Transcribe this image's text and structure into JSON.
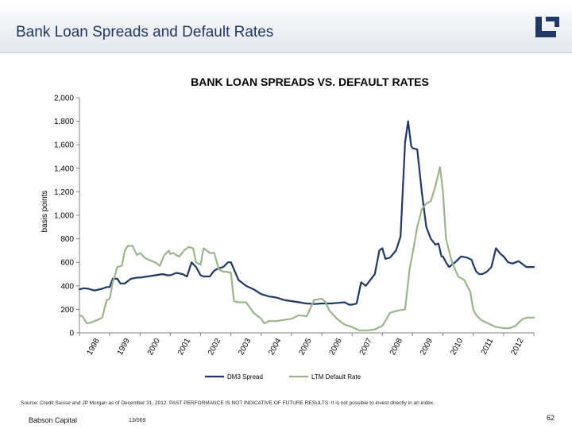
{
  "header": {
    "title": "Bank Loan Spreads and Default Rates",
    "logo_icon": "babson-bracket-logo-icon"
  },
  "colors": {
    "dm3": "#1f3864",
    "ltm": "#9bb58b",
    "axis": "#808080",
    "title": "#1f3864"
  },
  "chart_data": {
    "type": "line",
    "title": "BANK LOAN SPREADS VS. DEFAULT RATES",
    "ylabel": "basis points",
    "xlabel": "",
    "ylim": [
      0,
      2000
    ],
    "yticks": [
      0,
      200,
      400,
      600,
      800,
      1000,
      1200,
      1400,
      1600,
      1800,
      2000
    ],
    "ytick_labels": [
      "0",
      "200",
      "400",
      "600",
      "800",
      "1,000",
      "1,200",
      "1,400",
      "1,600",
      "1,800",
      "2,000"
    ],
    "xlim": [
      1998.0,
      2013.0
    ],
    "xtick_labels": [
      "1998",
      "1999",
      "2000",
      "2001",
      "2002",
      "2003",
      "2004",
      "2005",
      "2006",
      "2007",
      "2008",
      "2009",
      "2010",
      "2011",
      "2012"
    ],
    "grid": false,
    "legend_position": "bottom",
    "series": [
      {
        "name": "DM3 Spread",
        "color_key": "dm3",
        "x": [
          1998.0,
          1998.15,
          1998.3,
          1998.5,
          1998.75,
          1998.9,
          1999.0,
          1999.1,
          1999.25,
          1999.35,
          1999.5,
          1999.7,
          1999.9,
          2000.0,
          2000.25,
          2000.5,
          2000.75,
          2000.9,
          2001.0,
          2001.2,
          2001.4,
          2001.55,
          2001.7,
          2001.85,
          2002.0,
          2002.1,
          2002.3,
          2002.45,
          2002.6,
          2002.75,
          2002.9,
          2003.0,
          2003.25,
          2003.5,
          2003.75,
          2004.0,
          2004.25,
          2004.5,
          2004.75,
          2005.0,
          2005.25,
          2005.5,
          2005.75,
          2006.0,
          2006.3,
          2006.5,
          2006.75,
          2006.9,
          2007.0,
          2007.15,
          2007.3,
          2007.45,
          2007.6,
          2007.75,
          2007.9,
          2008.0,
          2008.1,
          2008.25,
          2008.45,
          2008.6,
          2008.75,
          2008.85,
          2008.95,
          2009.0,
          2009.15,
          2009.3,
          2009.45,
          2009.6,
          2009.75,
          2009.85,
          2009.95,
          2010.0,
          2010.1,
          2010.2,
          2010.4,
          2010.6,
          2010.8,
          2010.95,
          2011.0,
          2011.1,
          2011.2,
          2011.3,
          2011.45,
          2011.6,
          2011.75,
          2011.9,
          2012.0,
          2012.15,
          2012.3,
          2012.5,
          2012.75,
          2013.0
        ],
        "y": [
          370,
          380,
          375,
          360,
          375,
          390,
          390,
          460,
          460,
          420,
          420,
          460,
          470,
          470,
          480,
          490,
          500,
          490,
          490,
          510,
          500,
          480,
          600,
          560,
          490,
          480,
          480,
          530,
          550,
          560,
          600,
          600,
          450,
          400,
          370,
          330,
          310,
          300,
          280,
          270,
          260,
          250,
          245,
          250,
          250,
          255,
          260,
          240,
          240,
          250,
          430,
          400,
          450,
          500,
          700,
          720,
          630,
          640,
          700,
          820,
          1620,
          1800,
          1590,
          1570,
          1560,
          1200,
          900,
          800,
          750,
          760,
          650,
          650,
          600,
          560,
          600,
          650,
          640,
          620,
          580,
          520,
          500,
          500,
          520,
          560,
          720,
          670,
          650,
          600,
          590,
          610,
          560,
          560
        ]
      },
      {
        "name": "LTM Default Rate",
        "color_key": "ltm",
        "x": [
          1998.0,
          1998.1,
          1998.25,
          1998.4,
          1998.5,
          1998.6,
          1998.75,
          1998.9,
          1999.0,
          1999.1,
          1999.25,
          1999.4,
          1999.5,
          1999.6,
          1999.75,
          1999.9,
          2000.0,
          2000.15,
          2000.3,
          2000.5,
          2000.65,
          2000.8,
          2000.95,
          2001.0,
          2001.1,
          2001.2,
          2001.3,
          2001.45,
          2001.6,
          2001.75,
          2001.85,
          2002.0,
          2002.1,
          2002.2,
          2002.3,
          2002.45,
          2002.6,
          2002.75,
          2002.85,
          2003.0,
          2003.1,
          2003.25,
          2003.5,
          2003.75,
          2004.0,
          2004.1,
          2004.25,
          2004.5,
          2004.75,
          2005.0,
          2005.25,
          2005.5,
          2005.75,
          2006.0,
          2006.1,
          2006.25,
          2006.5,
          2006.75,
          2007.0,
          2007.25,
          2007.5,
          2007.75,
          2008.0,
          2008.1,
          2008.25,
          2008.5,
          2008.75,
          2008.9,
          2009.0,
          2009.15,
          2009.3,
          2009.45,
          2009.6,
          2009.75,
          2009.9,
          2010.0,
          2010.1,
          2010.3,
          2010.5,
          2010.7,
          2010.9,
          2011.0,
          2011.1,
          2011.25,
          2011.5,
          2011.75,
          2012.0,
          2012.2,
          2012.4,
          2012.5,
          2012.65,
          2012.8,
          2013.0
        ],
        "y": [
          150,
          140,
          80,
          90,
          100,
          110,
          130,
          280,
          290,
          430,
          560,
          570,
          700,
          740,
          740,
          660,
          680,
          640,
          620,
          600,
          570,
          660,
          700,
          670,
          680,
          660,
          650,
          700,
          730,
          720,
          600,
          580,
          720,
          700,
          680,
          680,
          540,
          520,
          520,
          510,
          270,
          260,
          260,
          170,
          120,
          80,
          100,
          100,
          110,
          120,
          150,
          140,
          280,
          290,
          270,
          190,
          120,
          70,
          50,
          20,
          20,
          30,
          60,
          100,
          170,
          190,
          200,
          550,
          680,
          900,
          1050,
          1100,
          1120,
          1250,
          1410,
          1200,
          800,
          600,
          480,
          450,
          350,
          200,
          150,
          110,
          80,
          50,
          40,
          40,
          60,
          90,
          120,
          130,
          130
        ]
      }
    ]
  },
  "source_note": "Source: Credit Suisse and JP Morgan as of December 31, 2012.  PAST PERFORMANCE IS NOT INDICATIVE OF FUTURE RESULTS.  It is not possible to invest directly in an index.",
  "footer": {
    "company": "Babson Capital",
    "code": "13/069",
    "page_number": "62"
  }
}
